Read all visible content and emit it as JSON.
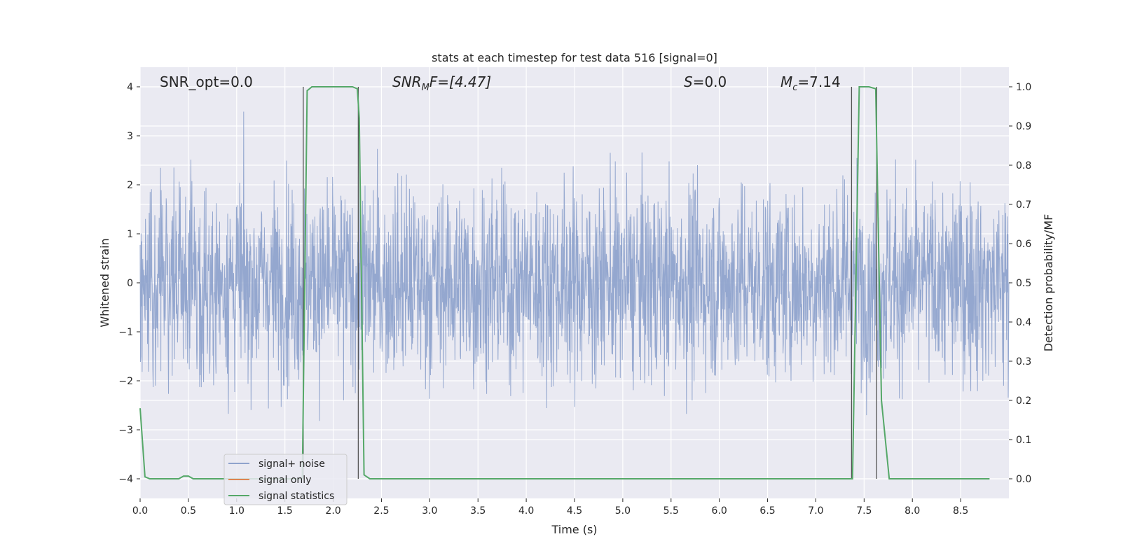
{
  "chart_data": {
    "type": "line",
    "title": "stats at each timestep for test data 516 [signal=0]",
    "xlabel": "Time (s)",
    "ylabel": "Whitened strain",
    "ylabel_right": "Detection probability/MF",
    "xlim": [
      0.0,
      9.0
    ],
    "ylim": [
      -4.4,
      4.4
    ],
    "ylim_right": [
      -0.05,
      1.05
    ],
    "xticks": [
      0.0,
      0.5,
      1.0,
      1.5,
      2.0,
      2.5,
      3.0,
      3.5,
      4.0,
      4.5,
      5.0,
      5.5,
      6.0,
      6.5,
      7.0,
      7.5,
      8.0,
      8.5
    ],
    "xtick_labels": [
      "0.0",
      "0.5",
      "1.0",
      "1.5",
      "2.0",
      "2.5",
      "3.0",
      "3.5",
      "4.0",
      "4.5",
      "5.0",
      "5.5",
      "6.0",
      "6.5",
      "7.0",
      "7.5",
      "8.0",
      "8.5"
    ],
    "yticks": [
      4,
      3,
      2,
      1,
      0,
      -1,
      -2,
      -3,
      -4
    ],
    "ytick_labels": [
      "4",
      "3",
      "2",
      "1",
      "0",
      "−1",
      "−2",
      "−3",
      "−4"
    ],
    "yticks_right": [
      1.0,
      0.9,
      0.8,
      0.7,
      0.6,
      0.5,
      0.4,
      0.3,
      0.2,
      0.1,
      0.0
    ],
    "ytick_labels_right": [
      "1.0",
      "0.9",
      "0.8",
      "0.7",
      "0.6",
      "0.5",
      "0.4",
      "0.3",
      "0.2",
      "0.1",
      "0.0"
    ],
    "grid": true,
    "legend_placement": "lower-left",
    "annotations": {
      "snr_opt": "SNR_opt=0.0",
      "snr_mf_main": "SNR",
      "snr_mf_sub": "M",
      "snr_mf_rest": "F=[4.47]",
      "s_main": "S",
      "s_rest": "=0.0",
      "mc_main": "M",
      "mc_sub": "c",
      "mc_rest": "=7.14"
    },
    "series": [
      {
        "name": "signal+ noise",
        "color": "#8fa3cc",
        "kind": "noise",
        "x_range": [
          0.0,
          9.0
        ],
        "typical_amplitude": 1.6,
        "peak_amplitude": 4.0
      },
      {
        "name": "signal only",
        "color": "#dd8452",
        "values": []
      },
      {
        "name": "signal statistics",
        "color": "#55a868",
        "axis": "right",
        "x": [
          0.0,
          0.05,
          0.1,
          0.2,
          0.3,
          0.4,
          0.45,
          0.5,
          0.55,
          0.6,
          1.6,
          1.68,
          1.73,
          1.78,
          1.9,
          2.0,
          2.1,
          2.2,
          2.25,
          2.27,
          2.32,
          2.38,
          2.5,
          7.0,
          7.28,
          7.38,
          7.45,
          7.55,
          7.62,
          7.68,
          7.76,
          8.0,
          8.8
        ],
        "values": [
          0.18,
          0.005,
          0.0,
          0.0,
          0.0,
          0.0,
          0.007,
          0.007,
          0.0,
          0.0,
          0.0,
          0.0,
          0.99,
          1.0,
          1.0,
          1.0,
          1.0,
          1.0,
          0.995,
          0.92,
          0.01,
          0.0,
          0.0,
          0.0,
          0.0,
          0.0,
          1.0,
          1.0,
          0.995,
          0.2,
          0.0,
          0.0,
          0.0
        ]
      }
    ],
    "vertical_lines": [
      1.69,
      2.26,
      7.37,
      7.63
    ]
  }
}
